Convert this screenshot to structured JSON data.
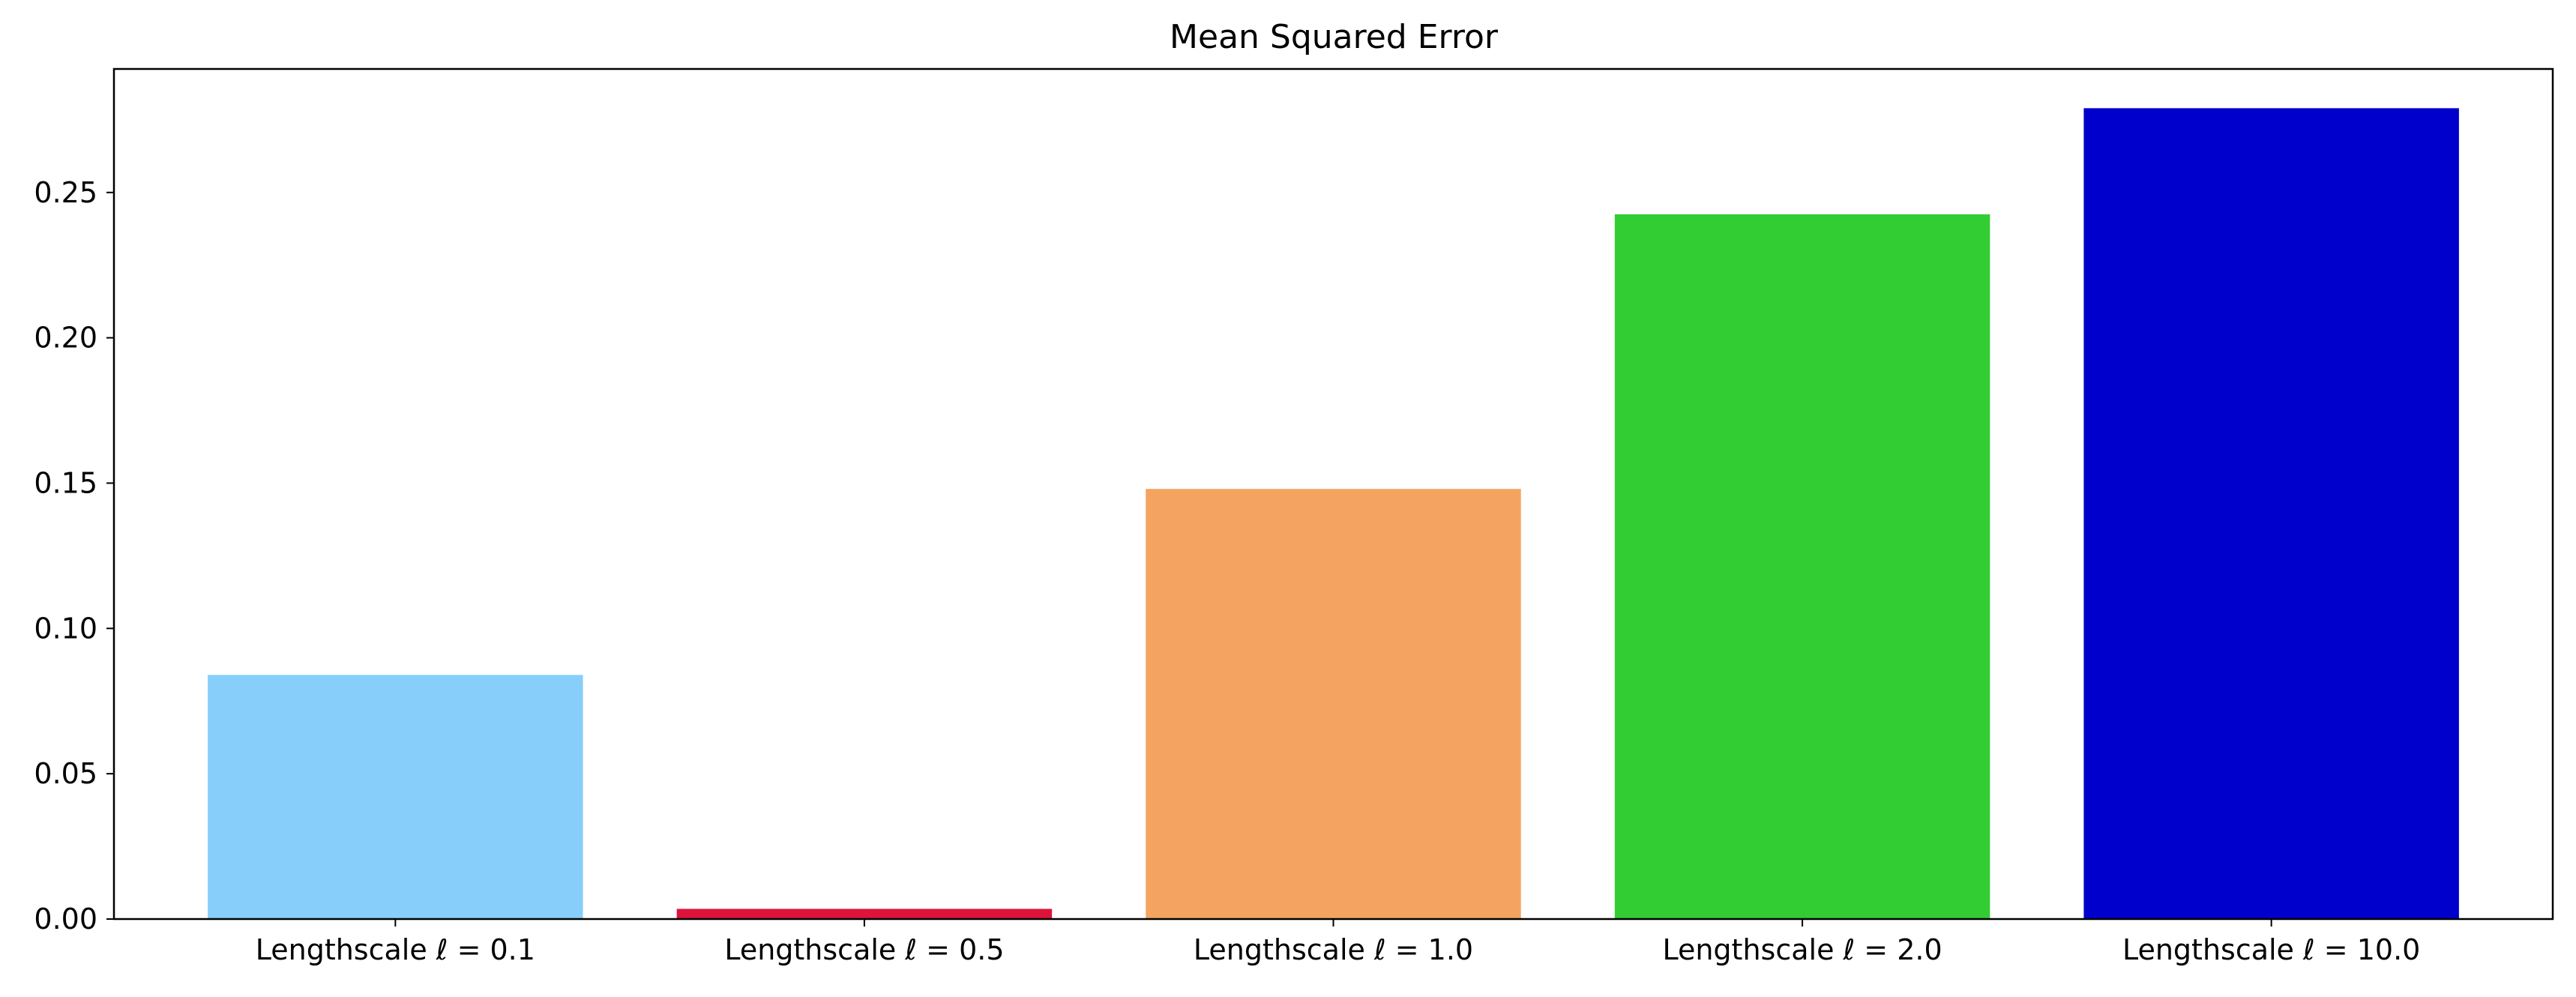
{
  "chart_data": {
    "type": "bar",
    "title": "Mean Squared Error",
    "xlabel": "",
    "ylabel": "",
    "categories": [
      "Lengthscale ℓ = 0.1",
      "Lengthscale ℓ = 0.5",
      "Lengthscale ℓ = 1.0",
      "Lengthscale ℓ = 2.0",
      "Lengthscale ℓ = 10.0"
    ],
    "values": [
      0.084,
      0.0035,
      0.148,
      0.2425,
      0.279
    ],
    "colors": [
      "#87CEFA",
      "#DC143C",
      "#F4A460",
      "#32CD32",
      "#0000CD"
    ],
    "ylim": [
      0,
      0.2925
    ],
    "yticks": [
      0.0,
      0.05,
      0.1,
      0.15,
      0.2,
      0.25
    ],
    "ytick_labels": [
      "0.00",
      "0.05",
      "0.10",
      "0.15",
      "0.20",
      "0.25"
    ],
    "grid": false,
    "legend": "none"
  }
}
